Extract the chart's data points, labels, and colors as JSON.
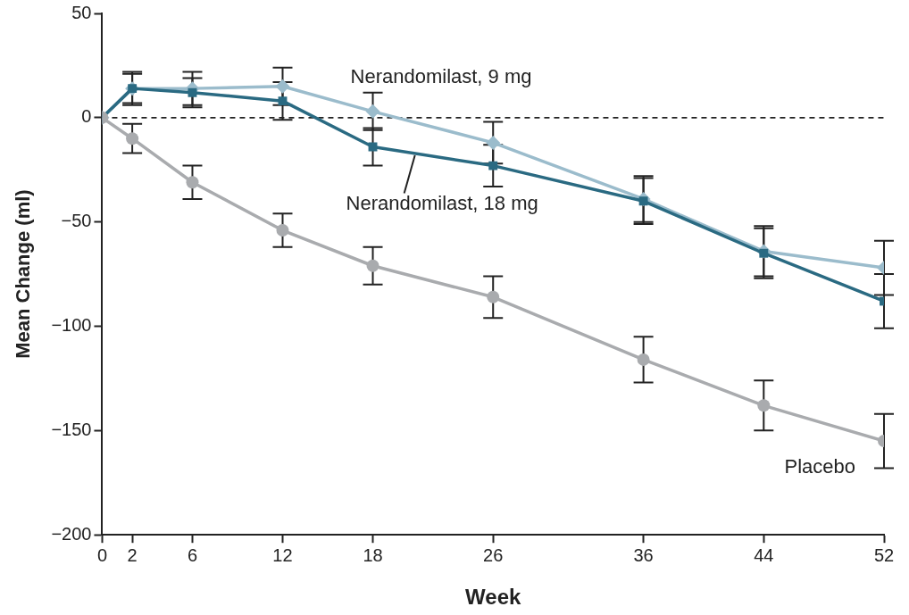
{
  "chart_data": {
    "type": "line",
    "xlabel": "Week",
    "ylabel": "Mean Change (ml)",
    "x": [
      0,
      2,
      6,
      12,
      18,
      26,
      36,
      44,
      52
    ],
    "xlim": [
      0,
      52
    ],
    "xticks": [
      0,
      2,
      6,
      12,
      18,
      26,
      36,
      44,
      52
    ],
    "ylim": [
      -200,
      50
    ],
    "yticks": [
      {
        "value": -200,
        "label": "−200"
      },
      {
        "value": -150,
        "label": "−150"
      },
      {
        "value": -100,
        "label": "−100"
      },
      {
        "value": -50,
        "label": "−50"
      },
      0,
      50
    ],
    "grid": false,
    "legend": false,
    "line_style": "solid",
    "ref_lines": [
      {
        "axis": "y",
        "value": 0,
        "color": "#222222",
        "line_style": "dashed"
      }
    ],
    "series": [
      {
        "name": "Nerandomilast, 9 mg",
        "color": "#9bbccc",
        "marker": "diamond",
        "values": [
          0,
          14,
          14,
          15,
          3,
          -12,
          -39,
          -64,
          -72
        ],
        "errors": [
          null,
          8,
          8,
          9,
          9,
          10,
          11,
          12,
          13
        ]
      },
      {
        "name": "Nerandomilast, 18 mg",
        "color": "#2a6a82",
        "marker": "square",
        "values": [
          0,
          14,
          12,
          8,
          -14,
          -23,
          -40,
          -65,
          -88
        ],
        "errors": [
          null,
          7,
          7,
          9,
          9,
          10,
          11,
          12,
          13
        ]
      },
      {
        "name": "Placebo",
        "color": "#a9abae",
        "marker": "circle",
        "values": [
          0,
          -10,
          -31,
          -54,
          -71,
          -86,
          -116,
          -138,
          -155
        ],
        "errors": [
          null,
          7,
          8,
          8,
          9,
          10,
          11,
          12,
          13
        ]
      }
    ]
  }
}
